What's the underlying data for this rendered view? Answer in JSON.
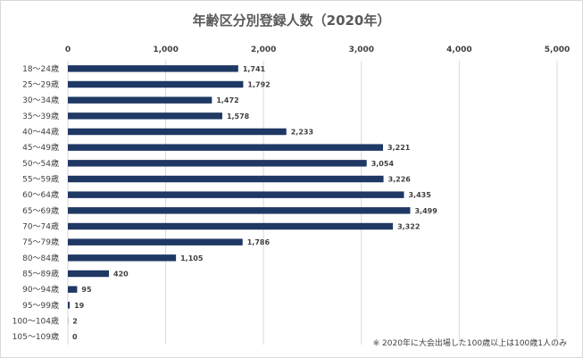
{
  "chart_data": {
    "type": "bar",
    "orientation": "horizontal",
    "title": "年齢区分別登録人数（2020年）",
    "categories": [
      "18～24歳",
      "25～29歳",
      "30～34歳",
      "35～39歳",
      "40～44歳",
      "45～49歳",
      "50～54歳",
      "55～59歳",
      "60～64歳",
      "65～69歳",
      "70～74歳",
      "75～79歳",
      "80～84歳",
      "85～89歳",
      "90～94歳",
      "95～99歳",
      "100～104歳",
      "105～109歳"
    ],
    "values": [
      1741,
      1792,
      1472,
      1578,
      2233,
      3221,
      3054,
      3226,
      3435,
      3499,
      3322,
      1786,
      1105,
      420,
      95,
      19,
      2,
      0
    ],
    "value_labels": [
      "1,741",
      "1,792",
      "1,472",
      "1,578",
      "2,233",
      "3,221",
      "3,054",
      "3,226",
      "3,435",
      "3,499",
      "3,322",
      "1,786",
      "1,105",
      "420",
      "95",
      "19",
      "2",
      "0"
    ],
    "xlim": [
      0,
      5000
    ],
    "x_ticks": [
      0,
      1000,
      2000,
      3000,
      4000,
      5000
    ],
    "x_tick_labels": [
      "0",
      "1,000",
      "2,000",
      "3,000",
      "4,000",
      "5,000"
    ],
    "x_axis_position": "top",
    "grid": true,
    "bar_color": "#1f3864",
    "grid_color": "#d9d9d9"
  },
  "footnote": "※ 2020年に大会出場した100歳以上は100歳1人のみ"
}
